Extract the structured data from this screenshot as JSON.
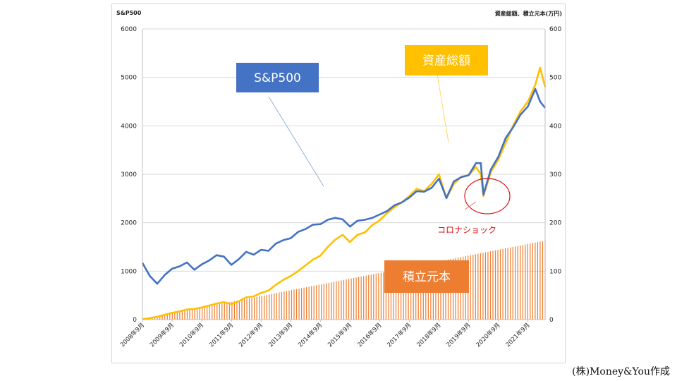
{
  "left_axis_title": "S&P500",
  "right_axis_title": "資産総額、積立元本(万円)",
  "credit": "(株)Money&You作成",
  "colors": {
    "sp500": "#4472c4",
    "asset": "#ffc000",
    "principal": "#ed7d31",
    "callout_sp500_bg": "#4472c4",
    "callout_asset_bg": "#ffc000",
    "callout_principal_bg": "#ed7d31",
    "covid": "#e01010",
    "grid": "#d9d9d9"
  },
  "chart_data": {
    "type": "line",
    "x_ticks": [
      "2008年9月",
      "2009年9月",
      "2010年9月",
      "2011年9月",
      "2012年9月",
      "2013年9月",
      "2014年9月",
      "2015年9月",
      "2016年9月",
      "2017年9月",
      "2018年9月",
      "2019年9月",
      "2020年9月",
      "2021年9月"
    ],
    "left_axis": {
      "title": "S&P500",
      "ylim": [
        0,
        6000
      ],
      "ticks": [
        "0",
        "1000",
        "2000",
        "3000",
        "4000",
        "5000",
        "6000"
      ]
    },
    "right_axis": {
      "title": "資産総額、積立元本(万円)",
      "ylim": [
        0,
        600
      ],
      "ticks": [
        "0",
        "100",
        "200",
        "300",
        "400",
        "500",
        "600"
      ]
    },
    "grid": "horizontal",
    "series": [
      {
        "name": "S&P500",
        "type": "line",
        "axis": "left",
        "x": [
          2008.67,
          2008.92,
          2009.17,
          2009.42,
          2009.67,
          2009.92,
          2010.17,
          2010.42,
          2010.67,
          2010.92,
          2011.17,
          2011.42,
          2011.67,
          2011.92,
          2012.17,
          2012.42,
          2012.67,
          2012.92,
          2013.17,
          2013.42,
          2013.67,
          2013.92,
          2014.17,
          2014.42,
          2014.67,
          2014.92,
          2015.17,
          2015.42,
          2015.67,
          2015.92,
          2016.17,
          2016.42,
          2016.67,
          2016.92,
          2017.17,
          2017.42,
          2017.67,
          2017.92,
          2018.17,
          2018.42,
          2018.67,
          2018.92,
          2019.17,
          2019.42,
          2019.67,
          2019.92,
          2020.08,
          2020.17,
          2020.42,
          2020.67,
          2020.92,
          2021.17,
          2021.42,
          2021.67,
          2021.92,
          2022.08,
          2022.25
        ],
        "values": [
          1170,
          900,
          740,
          920,
          1050,
          1100,
          1180,
          1030,
          1140,
          1220,
          1330,
          1300,
          1130,
          1250,
          1400,
          1340,
          1440,
          1420,
          1570,
          1640,
          1680,
          1810,
          1870,
          1960,
          1970,
          2060,
          2100,
          2070,
          1920,
          2040,
          2060,
          2100,
          2170,
          2240,
          2360,
          2420,
          2520,
          2650,
          2640,
          2720,
          2910,
          2510,
          2850,
          2940,
          2980,
          3230,
          3230,
          2580,
          3100,
          3360,
          3750,
          3970,
          4230,
          4400,
          4760,
          4500,
          4370
        ]
      },
      {
        "name": "資産総額",
        "type": "line",
        "axis": "right",
        "x": [
          2008.67,
          2008.92,
          2009.17,
          2009.42,
          2009.67,
          2009.92,
          2010.17,
          2010.42,
          2010.67,
          2010.92,
          2011.17,
          2011.42,
          2011.67,
          2011.92,
          2012.17,
          2012.42,
          2012.67,
          2012.92,
          2013.17,
          2013.42,
          2013.67,
          2013.92,
          2014.17,
          2014.42,
          2014.67,
          2014.92,
          2015.17,
          2015.42,
          2015.67,
          2015.92,
          2016.17,
          2016.42,
          2016.67,
          2016.92,
          2017.17,
          2017.42,
          2017.67,
          2017.92,
          2018.17,
          2018.42,
          2018.67,
          2018.92,
          2019.17,
          2019.42,
          2019.67,
          2019.92,
          2020.08,
          2020.17,
          2020.42,
          2020.67,
          2020.92,
          2021.17,
          2021.42,
          2021.67,
          2021.92,
          2022.08,
          2022.25
        ],
        "values": [
          1,
          3,
          6,
          10,
          14,
          17,
          21,
          22,
          25,
          29,
          33,
          36,
          32,
          38,
          46,
          48,
          55,
          60,
          72,
          82,
          90,
          100,
          112,
          124,
          132,
          150,
          165,
          175,
          160,
          175,
          180,
          195,
          205,
          220,
          232,
          242,
          255,
          270,
          265,
          280,
          300,
          250,
          280,
          295,
          298,
          315,
          300,
          255,
          305,
          330,
          365,
          400,
          430,
          450,
          485,
          520,
          480
        ]
      },
      {
        "name": "積立元本",
        "type": "bar",
        "axis": "right",
        "start": 2008.67,
        "end": 2022.25,
        "count": 163,
        "values_linear_from_to": [
          1,
          163
        ]
      }
    ],
    "annotations": [
      {
        "text": "S&P500",
        "points_to": "S&P500"
      },
      {
        "text": "資産総額",
        "points_to": "資産総額"
      },
      {
        "text": "積立元本",
        "points_to": "積立元本"
      },
      {
        "text": "コロナショック",
        "marks": "2020年3月"
      }
    ]
  }
}
